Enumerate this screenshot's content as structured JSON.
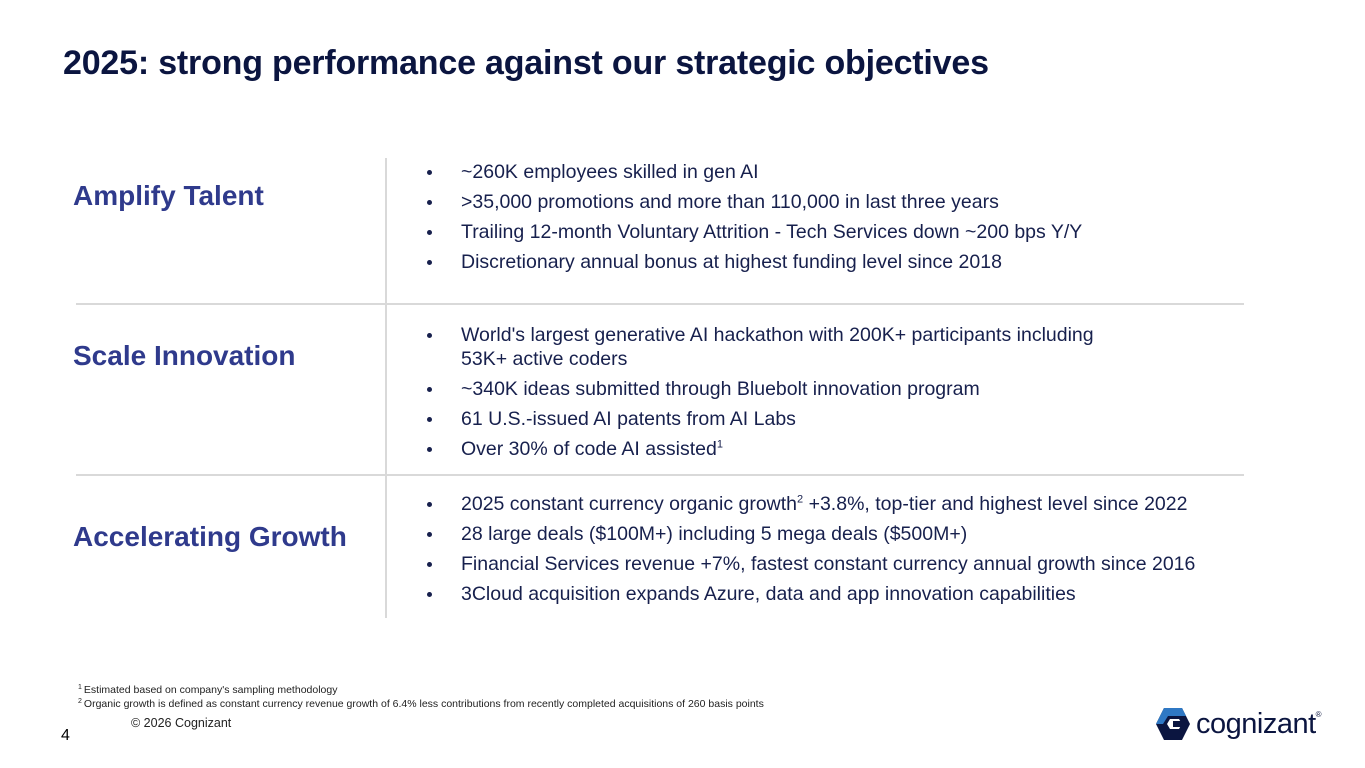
{
  "title": "2025: strong performance against our strategic objectives",
  "sections": [
    {
      "label": "Amplify Talent",
      "bullets": [
        {
          "text": "~260K employees skilled in gen AI"
        },
        {
          "text": ">35,000 promotions and more than 110,000 in last three years"
        },
        {
          "text": "Trailing 12-month Voluntary Attrition - Tech Services down ~200 bps Y/Y"
        },
        {
          "text": "Discretionary annual bonus at highest funding level since 2018"
        }
      ]
    },
    {
      "label": "Scale Innovation",
      "bullets": [
        {
          "text": "World's largest generative AI hackathon with 200K+ participants including",
          "text2": "53K+ active coders"
        },
        {
          "text": "~340K ideas submitted through Bluebolt innovation program"
        },
        {
          "text": "61 U.S.-issued AI patents from AI Labs"
        },
        {
          "text": "Over 30% of code AI assisted",
          "sup": "1"
        }
      ]
    },
    {
      "label": "Accelerating Growth",
      "bullets": [
        {
          "text": "2025 constant currency organic growth",
          "sup": "2",
          "text_after": " +3.8%, top-tier and highest level since 2022"
        },
        {
          "text": "28 large deals ($100M+) including 5 mega deals ($500M+)"
        },
        {
          "text": "Financial Services revenue +7%, fastest constant currency annual growth since 2016"
        },
        {
          "text": "3Cloud acquisition expands Azure, data and app innovation capabilities"
        }
      ]
    }
  ],
  "footnotes": [
    {
      "num": "1",
      "text": "Estimated based on company's sampling methodology"
    },
    {
      "num": "2",
      "text": "Organic growth is defined as constant currency revenue growth of 6.4% less contributions from recently completed acquisitions of 260 basis points"
    }
  ],
  "copyright": "© 2026 Cognizant",
  "page_number": "4",
  "logo": {
    "wordmark": "cognizant",
    "reg": "®",
    "icon": "cognizant-logo-icon"
  },
  "colors": {
    "title": "#0b1540",
    "label": "#2f3a8c",
    "text": "#17204d",
    "logo_blue": "#2f78c4",
    "logo_navy": "#0b1540"
  }
}
